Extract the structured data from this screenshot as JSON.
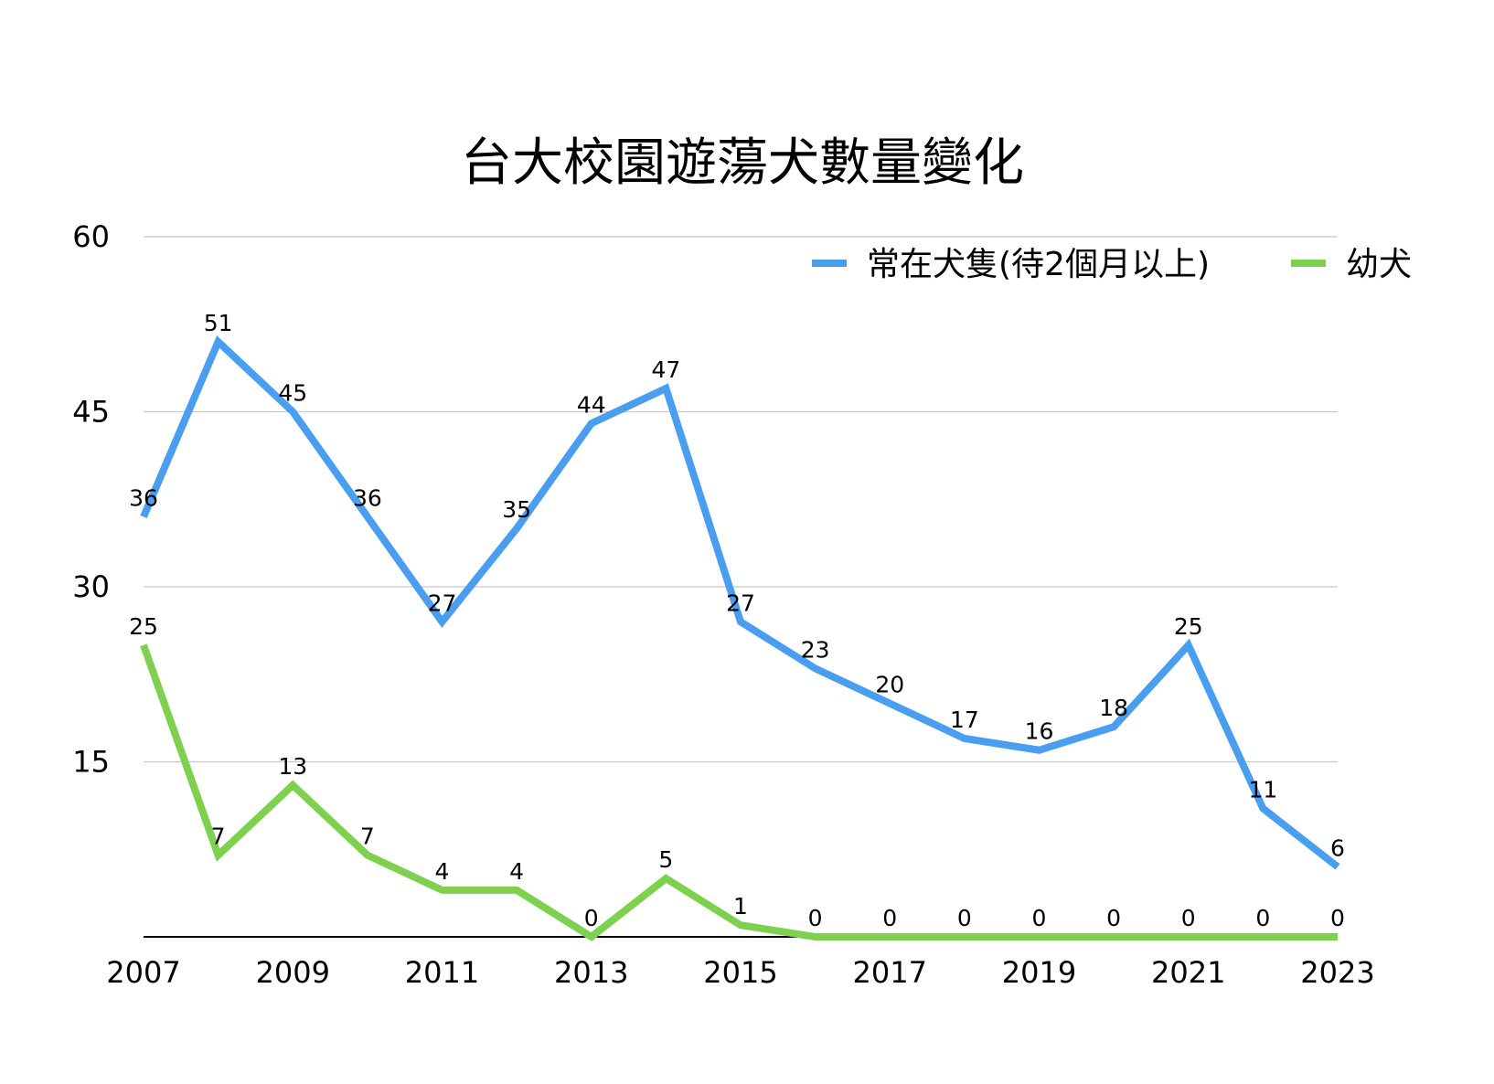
{
  "chart_data": {
    "type": "line",
    "title": "台大校園遊蕩犬數量變化",
    "xlabel": "",
    "ylabel": "",
    "x": [
      2007,
      2008,
      2009,
      2010,
      2011,
      2012,
      2013,
      2014,
      2015,
      2016,
      2017,
      2018,
      2019,
      2020,
      2021,
      2022,
      2023
    ],
    "x_tick_labels": [
      "2007",
      "2009",
      "2011",
      "2013",
      "2015",
      "2017",
      "2019",
      "2021",
      "2023"
    ],
    "y_ticks": [
      15,
      30,
      45,
      60
    ],
    "ylim": [
      0,
      60
    ],
    "xlim": [
      2007,
      2023
    ],
    "grid": true,
    "legend_position": "top-right",
    "data_labels": true,
    "series": [
      {
        "name": "常在犬隻(待2個月以上)",
        "color": "#4a9ef0",
        "values": [
          36,
          51,
          45,
          36,
          27,
          35,
          44,
          47,
          27,
          23,
          20,
          17,
          16,
          18,
          25,
          11,
          6
        ]
      },
      {
        "name": "幼犬",
        "color": "#7ed04f",
        "values": [
          25,
          7,
          13,
          7,
          4,
          4,
          0,
          5,
          1,
          0,
          0,
          0,
          0,
          0,
          0,
          0,
          0
        ]
      }
    ]
  }
}
